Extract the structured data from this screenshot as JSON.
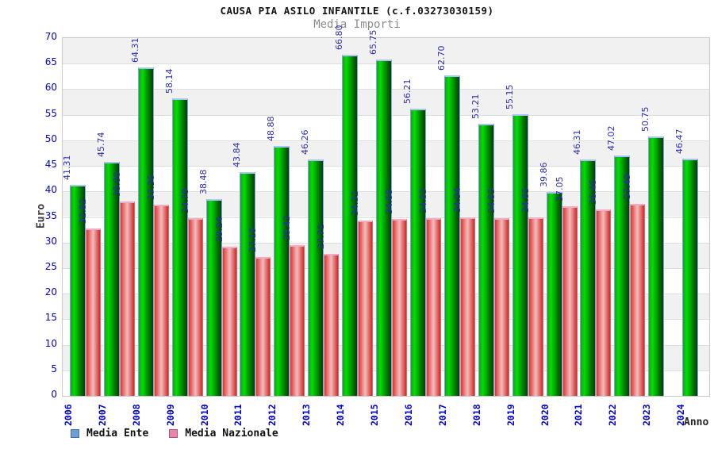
{
  "header": {
    "title": "CAUSA PIA ASILO INFANTILE (c.f.03273030159)",
    "subtitle": "Media Importi"
  },
  "colors": {
    "bar_green": "#00c800",
    "bar_red": "#df3333",
    "value_label": "#2d2db4",
    "tick_label": "#0000cc",
    "band_gray": "#f1f1f1"
  },
  "chart_data": {
    "type": "bar",
    "title": "CAUSA PIA ASILO INFANTILE (c.f.03273030159)",
    "subtitle": "Media Importi",
    "xlabel": "Anno",
    "ylabel": "Euro",
    "ylim": [
      0,
      70
    ],
    "ytick_step": 5,
    "grid": "horizontal-bands-alternating",
    "legend_position": "bottom-left",
    "categories": [
      "2006",
      "2007",
      "2008",
      "2009",
      "2010",
      "2011",
      "2012",
      "2013",
      "2014",
      "2015",
      "2016",
      "2017",
      "2018",
      "2019",
      "2020",
      "2021",
      "2022",
      "2023",
      "2024"
    ],
    "series": [
      {
        "name": "Media Ente",
        "legend_color": "#6f9fd8",
        "legend_border": "#44709e",
        "bar_color": "#00c800",
        "values": [
          41.31,
          45.74,
          64.31,
          58.14,
          38.48,
          43.84,
          48.88,
          46.26,
          66.8,
          65.75,
          56.21,
          62.7,
          53.21,
          55.15,
          39.86,
          46.31,
          47.02,
          50.75,
          46.47
        ]
      },
      {
        "name": "Media Nazionale",
        "legend_color": "#ec83ab",
        "legend_border": "#a85577",
        "bar_color": "#df3333",
        "values": [
          32.82,
          38.0,
          37.36,
          34.79,
          29.24,
          27.19,
          29.43,
          27.71,
          34.32,
          34.68,
          34.83,
          34.94,
          34.83,
          34.85,
          37.05,
          36.46,
          37.49,
          null,
          null
        ]
      }
    ]
  }
}
